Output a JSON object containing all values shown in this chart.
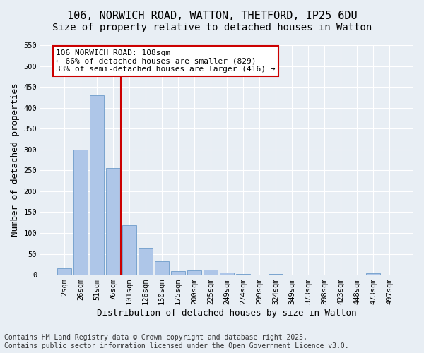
{
  "title_line1": "106, NORWICH ROAD, WATTON, THETFORD, IP25 6DU",
  "title_line2": "Size of property relative to detached houses in Watton",
  "xlabel": "Distribution of detached houses by size in Watton",
  "ylabel": "Number of detached properties",
  "bar_values": [
    15,
    300,
    430,
    255,
    118,
    65,
    33,
    9,
    11,
    12,
    5,
    2,
    0,
    1,
    0,
    0,
    0,
    0,
    0,
    4,
    0
  ],
  "categories": [
    "2sqm",
    "26sqm",
    "51sqm",
    "76sqm",
    "101sqm",
    "126sqm",
    "150sqm",
    "175sqm",
    "200sqm",
    "225sqm",
    "249sqm",
    "274sqm",
    "299sqm",
    "324sqm",
    "349sqm",
    "373sqm",
    "398sqm",
    "423sqm",
    "448sqm",
    "473sqm",
    "497sqm"
  ],
  "bar_color": "#aec6e8",
  "bar_edge_color": "#5a8fc2",
  "background_color": "#e8eef4",
  "grid_color": "#ffffff",
  "vline_x": 3.5,
  "vline_color": "#cc0000",
  "annotation_text": "106 NORWICH ROAD: 108sqm\n← 66% of detached houses are smaller (829)\n33% of semi-detached houses are larger (416) →",
  "annotation_box_color": "#ffffff",
  "annotation_box_edge_color": "#cc0000",
  "ylim_max": 550,
  "yticks": [
    0,
    50,
    100,
    150,
    200,
    250,
    300,
    350,
    400,
    450,
    500,
    550
  ],
  "footer_line1": "Contains HM Land Registry data © Crown copyright and database right 2025.",
  "footer_line2": "Contains public sector information licensed under the Open Government Licence v3.0.",
  "title_fontsize": 11,
  "subtitle_fontsize": 10,
  "axis_label_fontsize": 9,
  "tick_fontsize": 7.5,
  "annotation_fontsize": 8,
  "footer_fontsize": 7
}
